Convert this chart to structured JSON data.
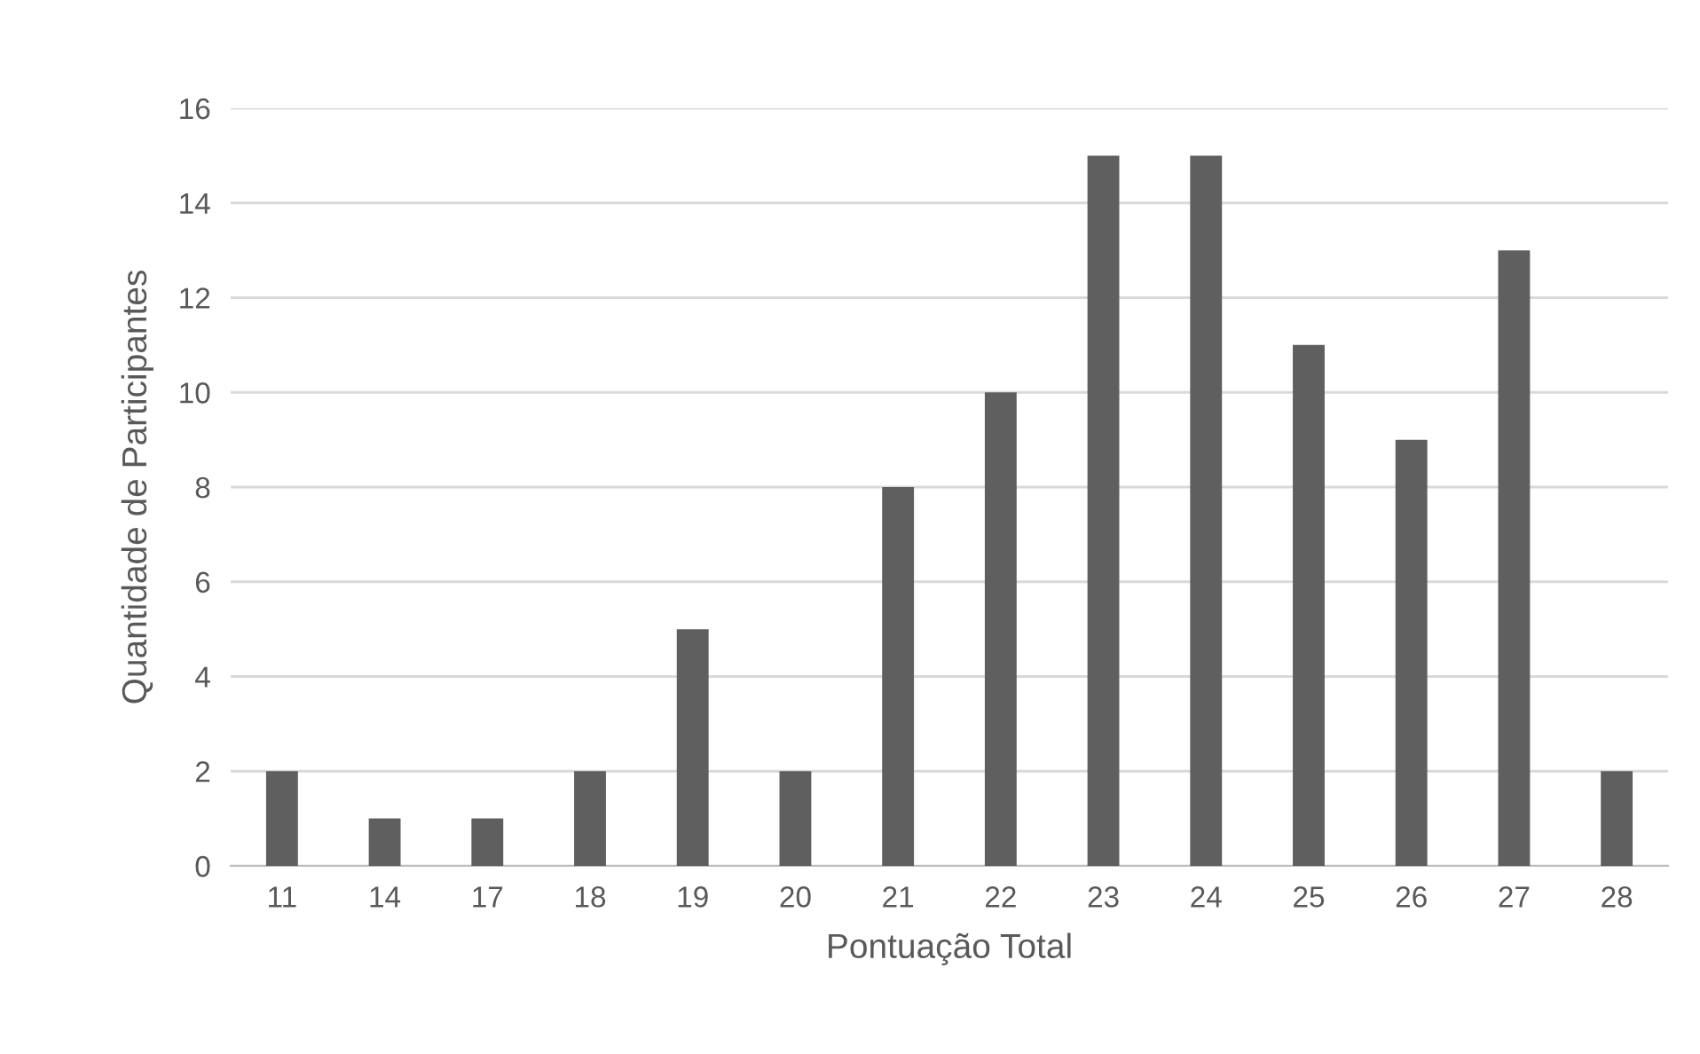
{
  "chart_data": {
    "type": "bar",
    "xlabel": "Pontuação Total",
    "ylabel": "Quantidade de Participantes",
    "categories": [
      "11",
      "14",
      "17",
      "18",
      "19",
      "20",
      "21",
      "22",
      "23",
      "24",
      "25",
      "26",
      "27",
      "28"
    ],
    "values": [
      2,
      1,
      1,
      2,
      5,
      2,
      8,
      10,
      15,
      15,
      11,
      9,
      13,
      2
    ],
    "color": "#5f5f5f",
    "ylim": [
      0,
      16
    ],
    "yticks": [
      0,
      2,
      4,
      6,
      8,
      10,
      12,
      14,
      16
    ],
    "grid": "y",
    "legend": false
  }
}
